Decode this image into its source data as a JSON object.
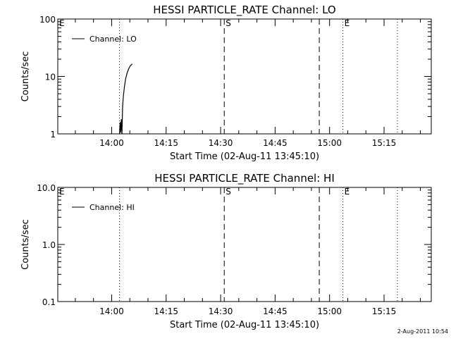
{
  "chart_data": [
    {
      "type": "line",
      "title": "HESSI PARTICLE_RATE Channel: LO",
      "xlabel": "Start Time (02-Aug-11 13:45:10)",
      "ylabel": "Counts/sec",
      "yscale": "log",
      "ylim": [
        1,
        100
      ],
      "xlim": [
        "13:45:10",
        "15:28:00"
      ],
      "x_ticks": [
        "14:00",
        "14:15",
        "14:30",
        "14:45",
        "15:00",
        "15:15"
      ],
      "y_ticks": [
        "1",
        "10",
        "100"
      ],
      "legend": {
        "position": "top-left",
        "entries": [
          "Channel: LO"
        ]
      },
      "series": [
        {
          "name": "Channel: LO",
          "x": [
            "14:02:10",
            "14:02:20",
            "14:02:30",
            "14:02:40",
            "14:02:50",
            "14:03:00",
            "14:03:10",
            "14:03:30",
            "14:03:50",
            "14:04:15",
            "14:04:40",
            "14:05:10",
            "14:05:40"
          ],
          "y": [
            1.0,
            1.6,
            1.05,
            1.8,
            1.0,
            2.8,
            4.2,
            6.5,
            9.0,
            11.5,
            13.5,
            15.5,
            16.5
          ]
        }
      ],
      "markers": [
        {
          "label": "E",
          "time": "13:45:10",
          "style": "dotted"
        },
        {
          "label": "",
          "time": "14:02:10",
          "style": "dotted"
        },
        {
          "label": "S",
          "time": "14:31:00",
          "style": "dashed"
        },
        {
          "label": "",
          "time": "14:57:10",
          "style": "dashed"
        },
        {
          "label": "E",
          "time": "15:03:40",
          "style": "dotted"
        },
        {
          "label": "",
          "time": "15:18:40",
          "style": "dotted"
        }
      ]
    },
    {
      "type": "line",
      "title": "HESSI PARTICLE_RATE Channel: HI",
      "xlabel": "Start Time (02-Aug-11 13:45:10)",
      "ylabel": "Counts/sec",
      "yscale": "log",
      "ylim": [
        0.1,
        10.0
      ],
      "xlim": [
        "13:45:10",
        "15:28:00"
      ],
      "x_ticks": [
        "14:00",
        "14:15",
        "14:30",
        "14:45",
        "15:00",
        "15:15"
      ],
      "y_ticks": [
        "0.1",
        "1.0",
        "10.0"
      ],
      "legend": {
        "position": "top-left",
        "entries": [
          "Channel: HI"
        ]
      },
      "series": [
        {
          "name": "Channel: HI",
          "x": [],
          "y": []
        }
      ],
      "markers": [
        {
          "label": "E",
          "time": "13:45:10",
          "style": "dotted"
        },
        {
          "label": "",
          "time": "14:02:10",
          "style": "dotted"
        },
        {
          "label": "S",
          "time": "14:31:00",
          "style": "dashed"
        },
        {
          "label": "",
          "time": "14:57:10",
          "style": "dashed"
        },
        {
          "label": "E",
          "time": "15:03:40",
          "style": "dotted"
        },
        {
          "label": "",
          "time": "15:18:40",
          "style": "dotted"
        }
      ]
    }
  ],
  "footer": {
    "timestamp": "2-Aug-2011 10:54"
  },
  "colors": {
    "foreground": "#000000",
    "background": "#ffffff"
  }
}
